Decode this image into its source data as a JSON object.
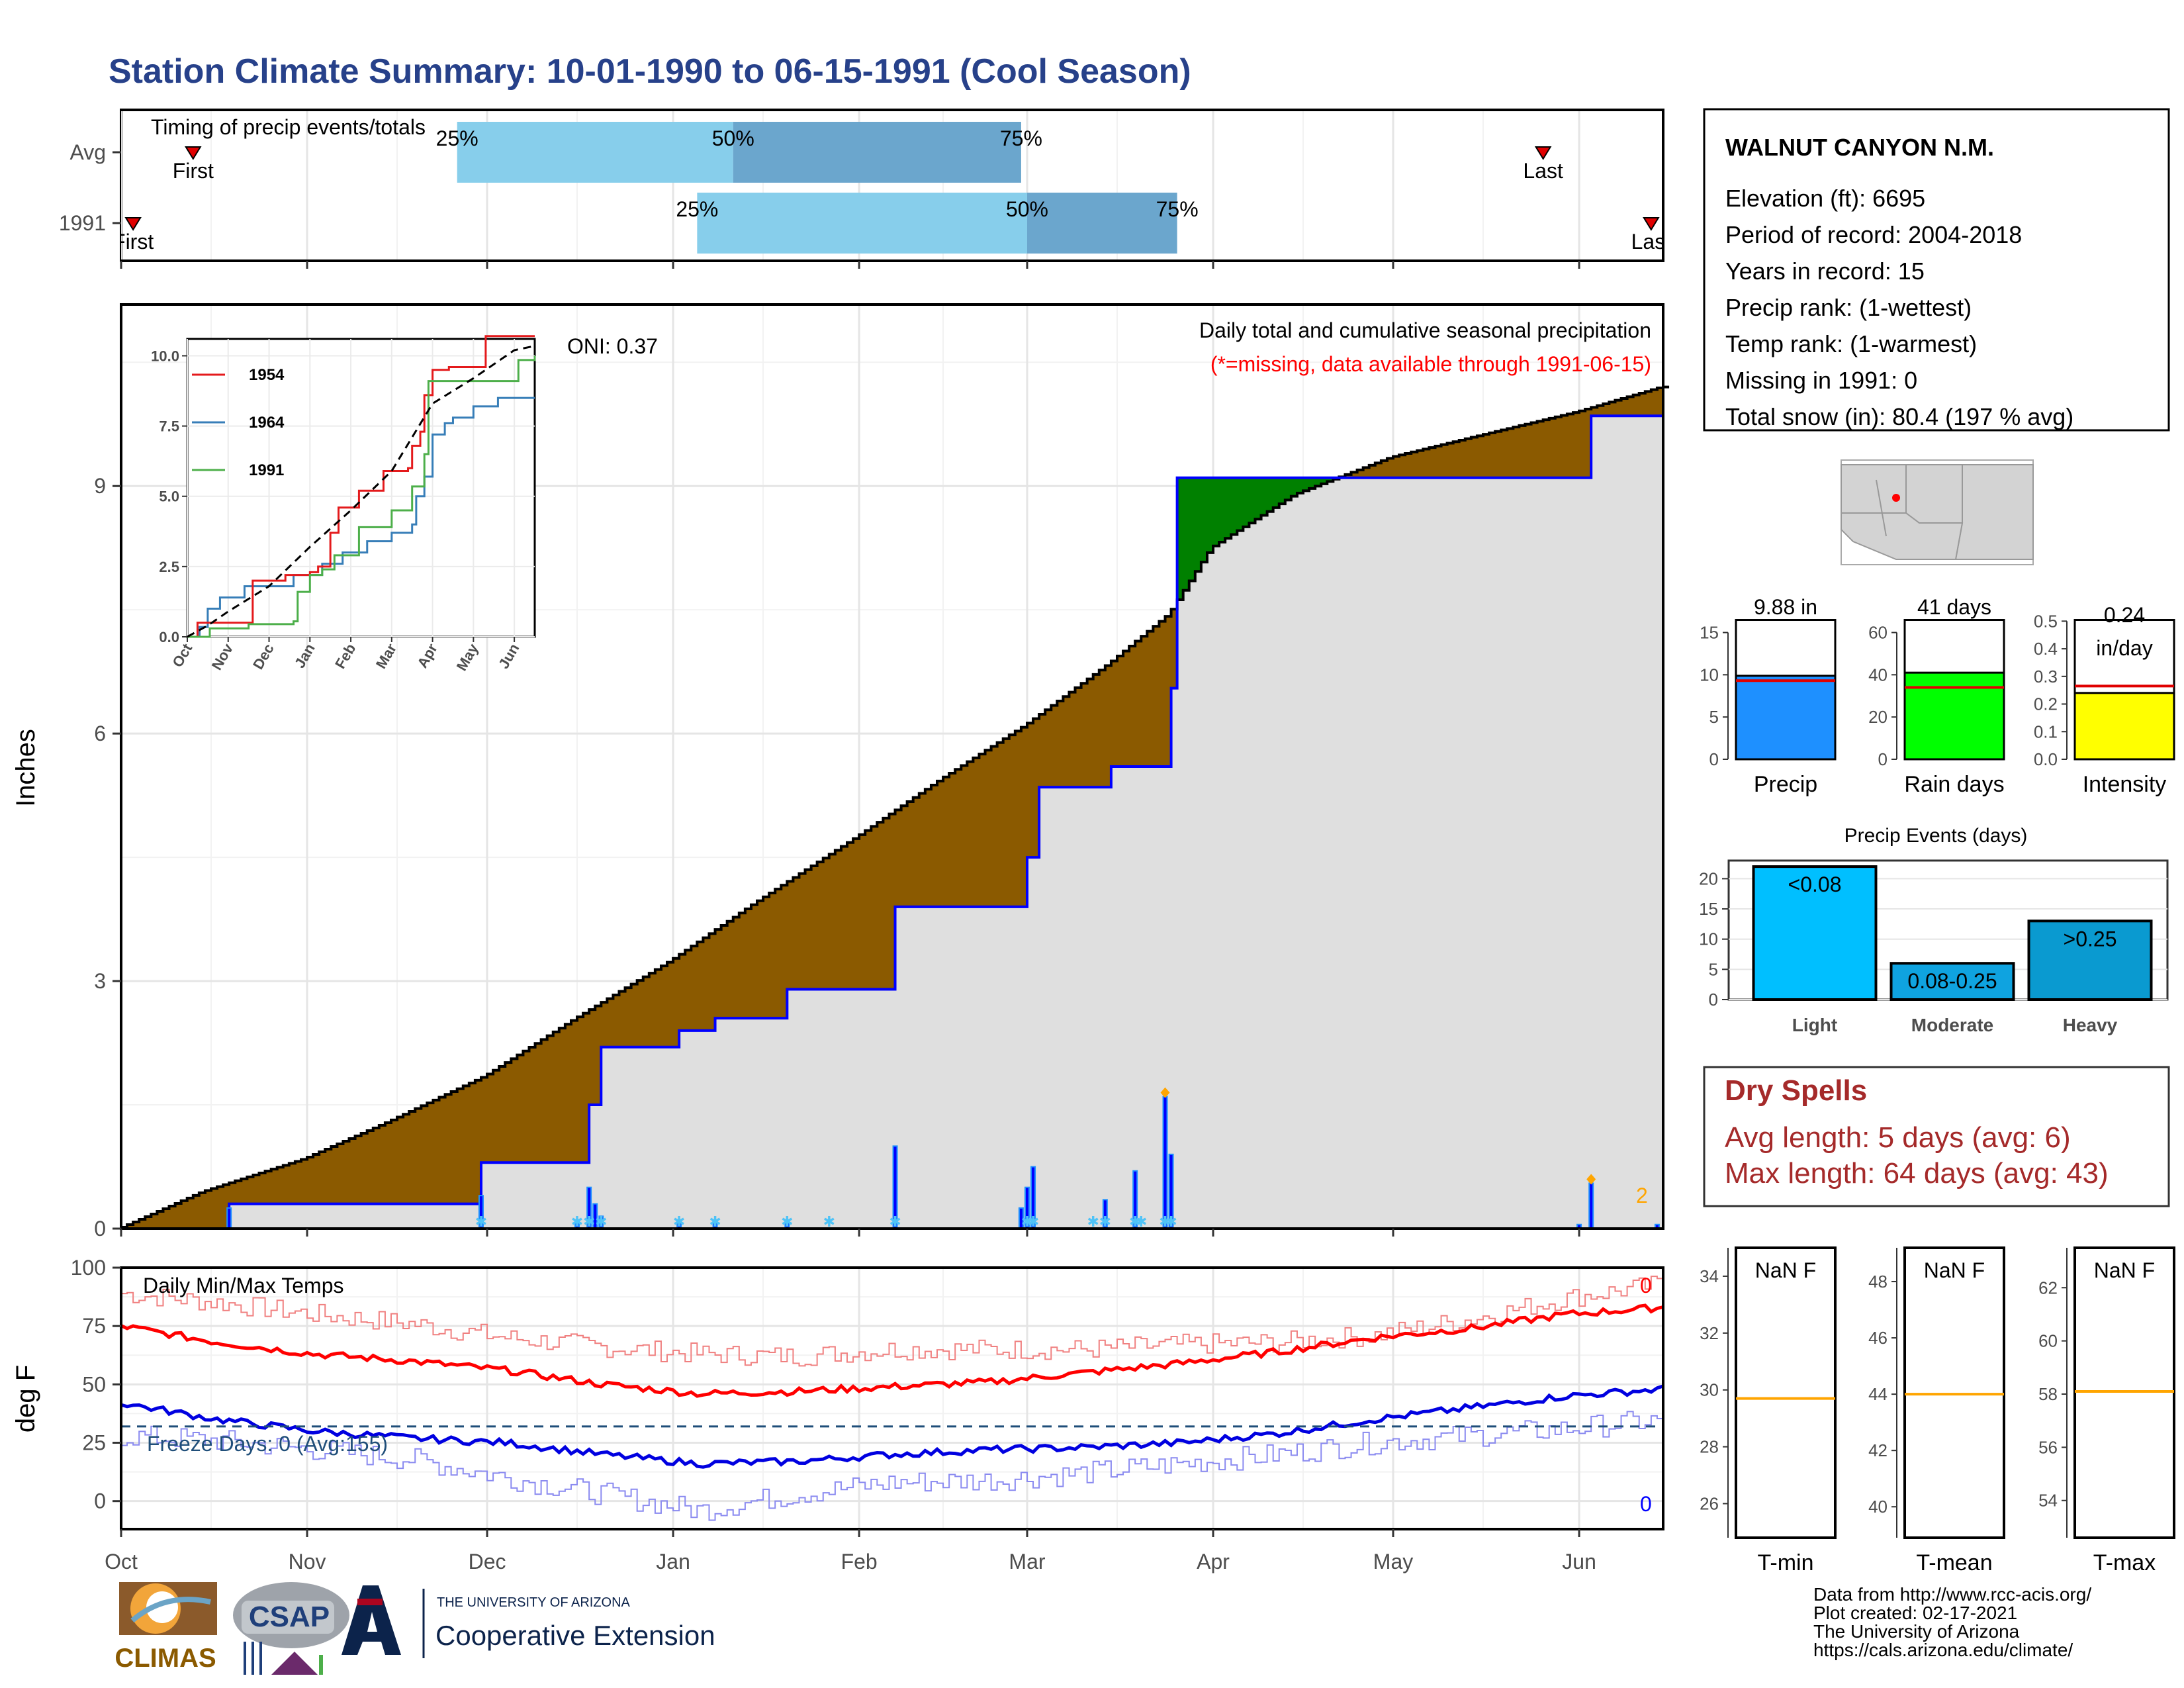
{
  "header": {
    "title": "Station Climate Summary: 10-01-1990 to 06-15-1991 (Cool Season)"
  },
  "colors": {
    "title": "#27418A",
    "brown": "#8B5A00",
    "gray_fill": "#DFDFDF",
    "blue_line": "#0000FF",
    "green": "#008000",
    "light_blue": "#87CEEB",
    "mid_blue": "#6BA6CD",
    "red": "#FF0000",
    "dry_spell_red": "#A52A2A",
    "orange": "#FFA500",
    "freeze_line": "#1F4E79"
  },
  "timing": {
    "title": "Timing of precip events/totals",
    "rows": [
      {
        "label": "Avg",
        "q25": "25%",
        "q50": "50%",
        "q75": "75%",
        "first": "First",
        "last": "Last",
        "first_date": "1990-10-13",
        "last_date": "1991-05-26",
        "q25_date": "1990-11-26",
        "q50_date": "1991-01-11",
        "q75_date": "1991-02-28"
      },
      {
        "label": "1991",
        "q25": "25%",
        "q50": "50%",
        "q75": "75%",
        "first": "First",
        "last": "Last",
        "first_date": "1990-10-03",
        "last_date": "1991-06-13",
        "q25_date": "1991-01-05",
        "q50_date": "1991-03-01",
        "q75_date": "1991-03-26"
      }
    ]
  },
  "precip_panel": {
    "title": "Daily total and cumulative seasonal precipitation",
    "note": "(*=missing, data available through 1991-06-15)",
    "oni": "ONI: 0.37",
    "ylabel": "Inches",
    "yticks": [
      "0",
      "3",
      "6",
      "9"
    ],
    "count_label": "2"
  },
  "inset": {
    "yticks": [
      "0.0",
      "2.5",
      "5.0",
      "7.5",
      "10.0"
    ],
    "xticks": [
      "Oct",
      "Nov",
      "Dec",
      "Jan",
      "Feb",
      "Mar",
      "Apr",
      "May",
      "Jun"
    ],
    "legend": [
      {
        "name": "1954",
        "color": "#E41A1C"
      },
      {
        "name": "1964",
        "color": "#377EB8"
      },
      {
        "name": "1991",
        "color": "#4DAF4A"
      }
    ]
  },
  "temp_panel": {
    "title": "Daily Min/Max Temps",
    "ylabel": "deg F",
    "yticks": [
      "0",
      "25",
      "50",
      "75",
      "100"
    ],
    "freeze": "Freeze Days: 0 (Avg:155)",
    "max_count": "0",
    "min_count": "0"
  },
  "x_months": [
    "Oct",
    "Nov",
    "Dec",
    "Jan",
    "Feb",
    "Mar",
    "Apr",
    "May",
    "Jun"
  ],
  "station": {
    "name": "WALNUT CANYON N.M.",
    "lines": [
      "Elevation (ft): 6695",
      "Period of record: 2004-2018",
      "Years in record: 15",
      "Precip rank:  (1-wettest)",
      "Temp rank:  (1-warmest)",
      "Missing in 1991: 0",
      "Total snow (in): 80.4 (197 % avg)"
    ]
  },
  "mini_bars": [
    {
      "label": "Precip",
      "value_label": "9.88 in",
      "yticks": [
        "0",
        "5",
        "10",
        "15"
      ],
      "ymax": 17,
      "value": 9.88,
      "avg": 9.3,
      "color": "#1E90FF"
    },
    {
      "label": "Rain days",
      "value_label": "41 days",
      "yticks": [
        "0",
        "20",
        "40",
        "60"
      ],
      "ymax": 68,
      "value": 41,
      "avg": 34,
      "color": "#00FF00"
    },
    {
      "label": "Intensity",
      "value_label_1": "0.24",
      "value_label_2": "in/day",
      "yticks": [
        "0.0",
        "0.1",
        "0.2",
        "0.3",
        "0.4",
        "0.5"
      ],
      "ymax": 0.52,
      "value": 0.24,
      "avg": 0.265,
      "color": "#FFFF00"
    }
  ],
  "events": {
    "title": "Precip Events (days)",
    "yticks": [
      "0",
      "5",
      "10",
      "15",
      "20"
    ],
    "ymax": 23,
    "bars": [
      {
        "category": "Light",
        "label": "<0.08",
        "value": 22,
        "color": "#00BFFF"
      },
      {
        "category": "Moderate",
        "label": "0.08-0.25",
        "value": 6,
        "color": "#0FA3E0"
      },
      {
        "category": "Heavy",
        "label": ">0.25",
        "value": 13,
        "color": "#0A9AD0"
      }
    ]
  },
  "dry_spells": {
    "title": "Dry Spells",
    "avg": "Avg length: 5 days (avg: 6)",
    "max": "Max length: 64 days (avg: 43)"
  },
  "temp_boxes": [
    {
      "value_label": "NaN F",
      "label": "T-min",
      "yticks": [
        "26",
        "28",
        "30",
        "32",
        "34"
      ],
      "ymin": 24.8,
      "ymax": 35,
      "avg": 29.7
    },
    {
      "value_label": "NaN F",
      "label": "T-mean",
      "yticks": [
        "40",
        "42",
        "44",
        "46",
        "48"
      ],
      "ymin": 38.9,
      "ymax": 49.2,
      "avg": 44
    },
    {
      "value_label": "NaN F",
      "label": "T-max",
      "yticks": [
        "54",
        "56",
        "58",
        "60",
        "62"
      ],
      "ymin": 52.6,
      "ymax": 63.5,
      "avg": 58.1
    }
  ],
  "credits": [
    "Data from http://www.rcc-acis.org/",
    "Plot created: 02-17-2021",
    "The University of Arizona",
    "https://cals.arizona.edu/climate/"
  ],
  "logos": {
    "climas": "CLIMAS",
    "csap": "CSAP",
    "ua_small": "THE UNIVERSITY OF ARIZONA",
    "ua_big": "Cooperative Extension"
  },
  "chart_data": {
    "type": "area",
    "title": "Daily total and cumulative seasonal precipitation",
    "ylabel": "Inches",
    "ylim": [
      0,
      11.2
    ],
    "x_range": [
      "1990-10-01",
      "1991-06-15"
    ],
    "series": [
      {
        "name": "cumulative average",
        "x": [
          "1990-10-01",
          "1990-10-15",
          "1990-11-01",
          "1990-11-15",
          "1990-12-01",
          "1990-12-15",
          "1991-01-01",
          "1991-01-15",
          "1991-02-01",
          "1991-02-15",
          "1991-03-01",
          "1991-03-15",
          "1991-03-25",
          "1991-04-01",
          "1991-04-15",
          "1991-05-01",
          "1991-05-15",
          "1991-06-01",
          "1991-06-15"
        ],
        "values": [
          0,
          0.45,
          0.85,
          1.3,
          1.85,
          2.5,
          3.25,
          3.95,
          4.75,
          5.45,
          6.1,
          6.85,
          7.45,
          8.25,
          8.9,
          9.35,
          9.6,
          9.9,
          10.2
        ]
      },
      {
        "name": "cumulative 1991",
        "x": [
          "1990-10-01",
          "1990-10-19",
          "1990-11-30",
          "1990-12-18",
          "1990-12-20",
          "1991-01-02",
          "1991-01-08",
          "1991-01-20",
          "1991-02-07",
          "1991-03-01",
          "1991-03-03",
          "1991-03-15",
          "1991-03-25",
          "1991-03-26",
          "1991-06-01",
          "1991-06-03",
          "1991-06-15"
        ],
        "values": [
          0,
          0.3,
          0.8,
          1.5,
          2.2,
          2.4,
          2.55,
          2.9,
          3.9,
          4.5,
          5.35,
          5.6,
          6.55,
          9.1,
          9.1,
          9.85,
          10.0
        ]
      },
      {
        "name": "daily 1991",
        "x": [
          "1990-10-19",
          "1990-11-30",
          "1990-12-16",
          "1990-12-18",
          "1990-12-19",
          "1990-12-20",
          "1991-01-02",
          "1991-01-08",
          "1991-01-20",
          "1991-02-07",
          "1991-02-28",
          "1991-03-01",
          "1991-03-02",
          "1991-03-14",
          "1991-03-19",
          "1991-03-24",
          "1991-03-25",
          "1991-06-01",
          "1991-06-03",
          "1991-06-14"
        ],
        "values": [
          0.25,
          0.4,
          0.1,
          0.5,
          0.3,
          0.15,
          0.1,
          0.1,
          0.1,
          1.0,
          0.25,
          0.5,
          0.75,
          0.35,
          0.7,
          1.6,
          0.9,
          0.05,
          0.55,
          0.05
        ]
      }
    ],
    "temps": {
      "ylim": [
        -12,
        100
      ],
      "series_names": [
        "Tmax 1991",
        "Tmax avg",
        "Tmin avg",
        "Tmin 1991"
      ],
      "tmax_avg": [
        75,
        68,
        63,
        60,
        56,
        50,
        46,
        47,
        49,
        51,
        55,
        59,
        64,
        70,
        74,
        80,
        83
      ],
      "tmax_1991": [
        89,
        85,
        80,
        76,
        70,
        66,
        63,
        62,
        65,
        65,
        65,
        67,
        68,
        71,
        78,
        87,
        93
      ],
      "tmin_avg": [
        42,
        35,
        30,
        27,
        25,
        20,
        16,
        17,
        20,
        22,
        23,
        25,
        29,
        35,
        40,
        45,
        48
      ],
      "tmin_1991": [
        28,
        26,
        22,
        18,
        10,
        3,
        -4,
        3,
        8,
        9,
        12,
        16,
        20,
        25,
        28,
        31,
        35
      ],
      "freeze_threshold": 32
    }
  }
}
